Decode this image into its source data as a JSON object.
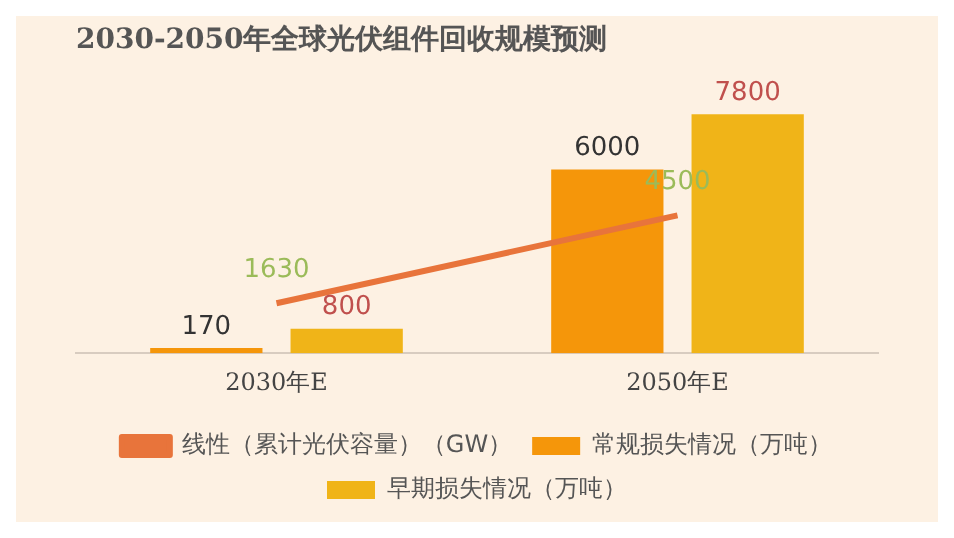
{
  "chart_data": {
    "type": "bar",
    "title": "2030-2050年全球光伏组件回收规模预测",
    "categories": [
      "2030年E",
      "2050年E"
    ],
    "data_labels": true,
    "legend": "bottom",
    "grid": false,
    "series": [
      {
        "name": "常规损失情况（万吨）",
        "color": "#f5960a",
        "values": [
          170,
          6000
        ]
      },
      {
        "name": "早期损失情况（万吨）",
        "color": "#f0b418",
        "values": [
          800,
          7800
        ]
      },
      {
        "name": "线性（累计光伏容量）（GW）",
        "type": "line",
        "color": "#e8743b",
        "values": [
          1630,
          4500
        ],
        "marker": "none"
      }
    ]
  }
}
